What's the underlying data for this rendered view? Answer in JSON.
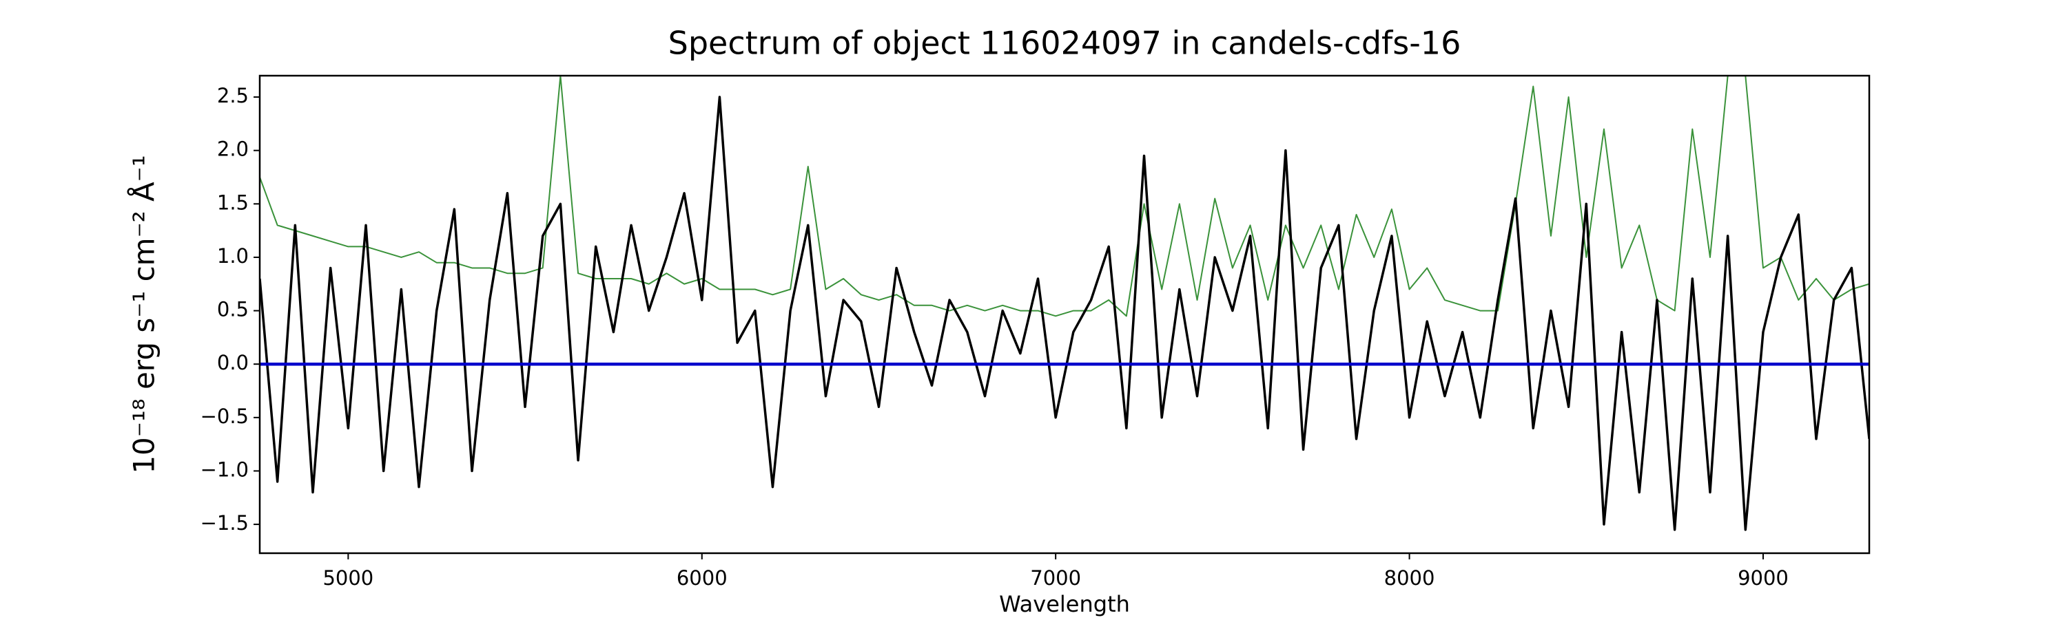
{
  "chart_data": {
    "type": "line",
    "title": "Spectrum of object 116024097 in candels-cdfs-16",
    "xlabel": "Wavelength",
    "ylabel": "10⁻¹⁸ erg s⁻¹ cm⁻² Å⁻¹",
    "x": [
      4750,
      4800,
      4850,
      4900,
      4950,
      5000,
      5050,
      5100,
      5150,
      5200,
      5250,
      5300,
      5350,
      5400,
      5450,
      5500,
      5550,
      5600,
      5650,
      5700,
      5750,
      5800,
      5850,
      5900,
      5950,
      6000,
      6050,
      6100,
      6150,
      6200,
      6250,
      6300,
      6350,
      6400,
      6450,
      6500,
      6550,
      6600,
      6650,
      6700,
      6750,
      6800,
      6850,
      6900,
      6950,
      7000,
      7050,
      7100,
      7150,
      7200,
      7250,
      7300,
      7350,
      7400,
      7450,
      7500,
      7550,
      7600,
      7650,
      7700,
      7750,
      7800,
      7850,
      7900,
      7950,
      8000,
      8050,
      8100,
      8150,
      8200,
      8250,
      8300,
      8350,
      8400,
      8450,
      8500,
      8550,
      8600,
      8650,
      8700,
      8750,
      8800,
      8850,
      8900,
      8950,
      9000,
      9050,
      9100,
      9150,
      9200,
      9250,
      9300
    ],
    "series": [
      {
        "color": "#3a923a",
        "width": 2,
        "values": [
          1.75,
          1.3,
          1.25,
          1.2,
          1.15,
          1.1,
          1.1,
          1.05,
          1.0,
          1.05,
          0.95,
          0.95,
          0.9,
          0.9,
          0.85,
          0.85,
          0.9,
          2.7,
          0.85,
          0.8,
          0.8,
          0.8,
          0.75,
          0.85,
          0.75,
          0.8,
          0.7,
          0.7,
          0.7,
          0.65,
          0.7,
          1.85,
          0.7,
          0.8,
          0.65,
          0.6,
          0.65,
          0.55,
          0.55,
          0.5,
          0.55,
          0.5,
          0.55,
          0.5,
          0.5,
          0.45,
          0.5,
          0.5,
          0.6,
          0.45,
          1.5,
          0.7,
          1.5,
          0.6,
          1.55,
          0.9,
          1.3,
          0.6,
          1.3,
          0.9,
          1.3,
          0.7,
          1.4,
          1.0,
          1.45,
          0.7,
          0.9,
          0.6,
          0.55,
          0.5,
          0.5,
          1.5,
          2.6,
          1.2,
          2.5,
          1.0,
          2.2,
          0.9,
          1.3,
          0.6,
          0.5,
          2.2,
          1.0,
          2.7,
          2.7,
          0.9,
          1.0,
          0.6,
          0.8,
          0.6,
          0.7,
          0.75
        ]
      },
      {
        "color": "#000000",
        "width": 3.5,
        "values": [
          0.8,
          -1.1,
          1.3,
          -1.2,
          0.9,
          -0.6,
          1.3,
          -1.0,
          0.7,
          -1.15,
          0.5,
          1.45,
          -1.0,
          0.6,
          1.6,
          -0.4,
          1.2,
          1.5,
          -0.9,
          1.1,
          0.3,
          1.3,
          0.5,
          1.0,
          1.6,
          0.6,
          2.5,
          0.2,
          0.5,
          -1.15,
          0.5,
          1.3,
          -0.3,
          0.6,
          0.4,
          -0.4,
          0.9,
          0.3,
          -0.2,
          0.6,
          0.3,
          -0.3,
          0.5,
          0.1,
          0.8,
          -0.5,
          0.3,
          0.6,
          1.1,
          -0.6,
          1.95,
          -0.5,
          0.7,
          -0.3,
          1.0,
          0.5,
          1.2,
          -0.6,
          2.0,
          -0.8,
          0.9,
          1.3,
          -0.7,
          0.5,
          1.2,
          -0.5,
          0.4,
          -0.3,
          0.3,
          -0.5,
          0.6,
          1.55,
          -0.6,
          0.5,
          -0.4,
          1.5,
          -1.5,
          0.3,
          -1.2,
          0.6,
          -1.55,
          0.8,
          -1.2,
          1.2,
          -1.55,
          0.3,
          1.0,
          1.4,
          -0.7,
          0.6,
          0.9,
          -0.7
        ]
      },
      {
        "color": "#0000cc",
        "width": 4.5,
        "values": [
          0,
          0,
          0,
          0,
          0,
          0,
          0,
          0,
          0,
          0,
          0,
          0,
          0,
          0,
          0,
          0,
          0,
          0,
          0,
          0,
          0,
          0,
          0,
          0,
          0,
          0,
          0,
          0,
          0,
          0,
          0,
          0,
          0,
          0,
          0,
          0,
          0,
          0,
          0,
          0,
          0,
          0,
          0,
          0,
          0,
          0,
          0,
          0,
          0,
          0,
          0,
          0,
          0,
          0,
          0,
          0,
          0,
          0,
          0,
          0,
          0,
          0,
          0,
          0,
          0,
          0,
          0,
          0,
          0,
          0,
          0,
          0,
          0,
          0,
          0,
          0,
          0,
          0,
          0,
          0,
          0,
          0,
          0,
          0,
          0,
          0,
          0,
          0,
          0,
          0,
          0,
          0
        ]
      }
    ],
    "xlim": [
      4750,
      9300
    ],
    "xticks": [
      5000,
      6000,
      7000,
      8000,
      9000
    ],
    "ylim": [
      -1.77,
      2.7
    ],
    "yticks": [
      {
        "value": -1.5,
        "label": "−1.5"
      },
      {
        "value": -1.0,
        "label": "−1.0"
      },
      {
        "value": -0.5,
        "label": "−0.5"
      },
      {
        "value": 0,
        "label": "0.0"
      },
      0.5,
      {
        "value": 1.0,
        "label": "1.0"
      },
      1.5,
      {
        "value": 2.0,
        "label": "2.0"
      },
      2.5
    ]
  }
}
